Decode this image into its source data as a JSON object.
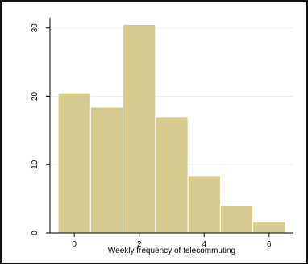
{
  "chart_data": {
    "type": "bar",
    "subtype": "histogram",
    "xlabel": "Weekly frequency of telecommuting",
    "ylabel": "",
    "xlim": [
      -0.75,
      6.75
    ],
    "ylim": [
      0,
      31.5
    ],
    "x_ticks": [
      0,
      2,
      4,
      6
    ],
    "y_ticks": [
      0,
      10,
      20,
      30
    ],
    "bin_width": 1,
    "bins": [
      {
        "start": -0.5,
        "end": 0.5,
        "value": 20.5
      },
      {
        "start": 0.5,
        "end": 1.5,
        "value": 18.4
      },
      {
        "start": 1.5,
        "end": 2.5,
        "value": 30.5
      },
      {
        "start": 2.5,
        "end": 3.5,
        "value": 17
      },
      {
        "start": 3.5,
        "end": 4.5,
        "value": 8.4
      },
      {
        "start": 4.5,
        "end": 5.5,
        "value": 4
      },
      {
        "start": 5.5,
        "end": 6.5,
        "value": 1.6
      }
    ],
    "grid": "horizontal",
    "legend": "none",
    "colors": {
      "bar_fill": "#d6cb8d",
      "bar_edge": "#ffffff",
      "grid": "#e6eef2",
      "axis": "#000000",
      "frame": "#111111"
    }
  }
}
